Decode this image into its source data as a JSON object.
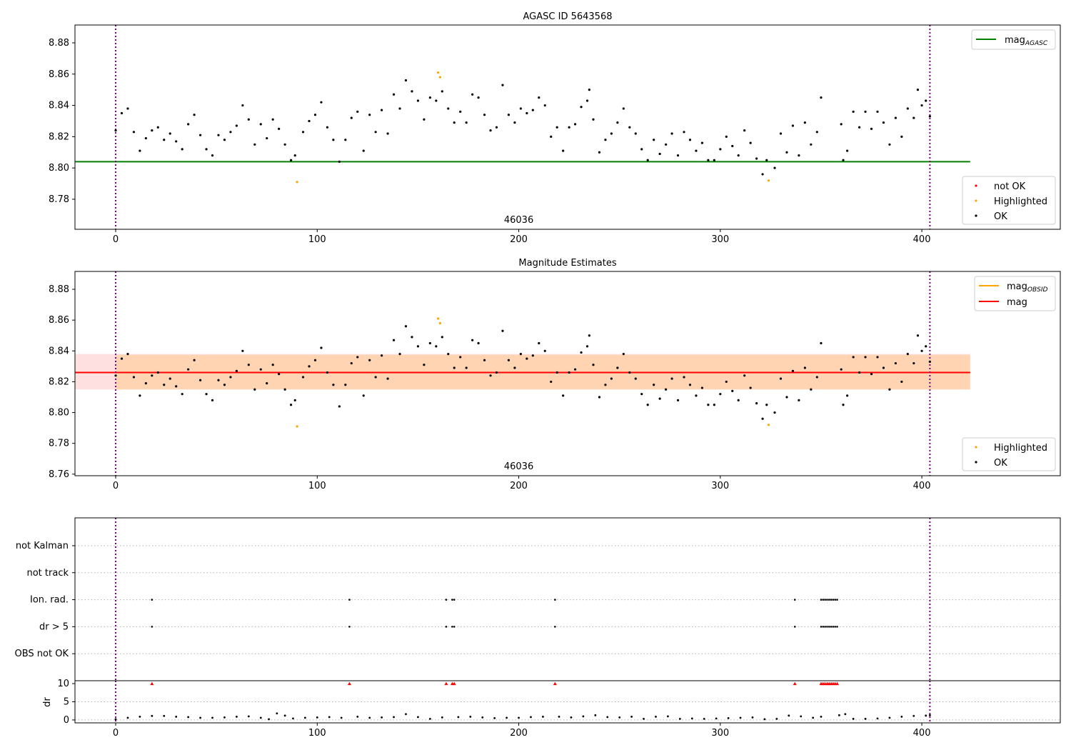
{
  "chart_data": [
    {
      "type": "scatter",
      "title": "AGASC ID 5643568",
      "xlim": [
        -20.2,
        468.7
      ],
      "ylim": [
        8.7608,
        8.8914
      ],
      "xticks": [
        0,
        100,
        200,
        300,
        400
      ],
      "yticks": [
        8.78,
        8.8,
        8.82,
        8.84,
        8.86,
        8.88
      ],
      "ytick_labels": [
        "8.78",
        "8.80",
        "8.82",
        "8.84",
        "8.86",
        "8.88"
      ],
      "xtick_labels": [
        "0",
        "100",
        "200",
        "300",
        "400"
      ],
      "annotation": {
        "text": "46036",
        "x": 200
      },
      "vlines": [
        0,
        404
      ],
      "hline": {
        "name": "mag_AGASC",
        "label": "mag",
        "sub": "AGASC",
        "value": 8.804,
        "xrange": [
          -20,
          424
        ],
        "color": "#008000"
      },
      "legend_top": "top-right",
      "legend_bottom": "bottom-right",
      "series_labels": [
        "not OK",
        "Highlighted",
        "OK"
      ],
      "series_colors": [
        "#ff0000",
        "#ffa500",
        "#000000"
      ]
    },
    {
      "type": "scatter",
      "title": "Magnitude Estimates",
      "xlim": [
        -20.2,
        468.7
      ],
      "ylim": [
        8.759,
        8.8916
      ],
      "xticks": [
        0,
        100,
        200,
        300,
        400
      ],
      "yticks": [
        8.76,
        8.78,
        8.8,
        8.82,
        8.84,
        8.86,
        8.88
      ],
      "ytick_labels": [
        "8.76",
        "8.78",
        "8.80",
        "8.82",
        "8.84",
        "8.86",
        "8.88"
      ],
      "xtick_labels": [
        "0",
        "100",
        "200",
        "300",
        "400"
      ],
      "annotation": {
        "text": "46036",
        "x": 200
      },
      "vlines": [
        0,
        404
      ],
      "mag_obsid": {
        "label": "mag",
        "sub": "OBSID",
        "value": 8.826,
        "band": [
          8.815,
          8.8375
        ],
        "color": "#ffa500"
      },
      "mag": {
        "label": "mag",
        "value": 8.826,
        "band": [
          8.815,
          8.838
        ],
        "color": "#ff0000"
      },
      "series_labels": [
        "Highlighted",
        "OK"
      ]
    },
    {
      "type": "scatter",
      "title": "",
      "xlim": [
        -20.2,
        468.7
      ],
      "ylim": [
        -1,
        5.03
      ],
      "categories": [
        "OBS not OK",
        "dr > 5",
        "Ion. rad.",
        "not track",
        "not Kalman"
      ],
      "flags": {
        "dr > 5": [
          18,
          116,
          164,
          167,
          168,
          218,
          337,
          350,
          351,
          352,
          353,
          354,
          355,
          356,
          357,
          358
        ],
        "Ion. rad.": [
          18,
          116,
          164,
          167,
          168,
          218,
          337,
          350,
          351,
          352,
          353,
          354,
          355,
          356,
          357,
          358
        ]
      }
    },
    {
      "type": "line",
      "ylabel": "dr",
      "xlim": [
        -20.2,
        468.7
      ],
      "ylim": [
        -0.8,
        10.8
      ],
      "yticks": [
        0,
        5,
        10
      ],
      "ytick_labels": [
        "0",
        "5",
        "10"
      ],
      "xticks": [
        0,
        100,
        200,
        300,
        400
      ],
      "xtick_labels": [
        "0",
        "100",
        "200",
        "300",
        "400"
      ],
      "dr_points": [
        [
          0,
          0.2
        ],
        [
          6,
          0.6
        ],
        [
          12,
          0.9
        ],
        [
          18,
          1.1
        ],
        [
          24,
          1.1
        ],
        [
          30,
          0.9
        ],
        [
          36,
          0.8
        ],
        [
          42,
          0.6
        ],
        [
          48,
          0.6
        ],
        [
          54,
          0.7
        ],
        [
          60,
          0.9
        ],
        [
          66,
          1.0
        ],
        [
          72,
          0.6
        ],
        [
          76,
          0.2
        ],
        [
          80,
          1.8
        ],
        [
          84,
          1.2
        ],
        [
          88,
          0.4
        ],
        [
          94,
          0.6
        ],
        [
          100,
          0.7
        ],
        [
          106,
          0.8
        ],
        [
          112,
          0.6
        ],
        [
          120,
          0.9
        ],
        [
          126,
          0.6
        ],
        [
          132,
          0.7
        ],
        [
          138,
          0.8
        ],
        [
          144,
          1.6
        ],
        [
          150,
          0.8
        ],
        [
          156,
          0.3
        ],
        [
          162,
          0.7
        ],
        [
          170,
          0.8
        ],
        [
          176,
          0.9
        ],
        [
          182,
          0.7
        ],
        [
          188,
          0.5
        ],
        [
          194,
          0.6
        ],
        [
          200,
          0.6
        ],
        [
          206,
          0.8
        ],
        [
          212,
          0.9
        ],
        [
          220,
          0.9
        ],
        [
          226,
          0.7
        ],
        [
          232,
          1.0
        ],
        [
          238,
          1.3
        ],
        [
          244,
          0.8
        ],
        [
          250,
          0.7
        ],
        [
          256,
          0.9
        ],
        [
          262,
          0.3
        ],
        [
          268,
          0.9
        ],
        [
          274,
          1.0
        ],
        [
          280,
          0.3
        ],
        [
          286,
          0.4
        ],
        [
          292,
          0.3
        ],
        [
          298,
          0.4
        ],
        [
          304,
          0.5
        ],
        [
          310,
          0.6
        ],
        [
          316,
          0.7
        ],
        [
          322,
          0.2
        ],
        [
          328,
          0.3
        ],
        [
          334,
          1.2
        ],
        [
          340,
          1.0
        ],
        [
          346,
          0.6
        ],
        [
          350,
          0.9
        ],
        [
          359,
          1.3
        ],
        [
          362,
          1.6
        ],
        [
          366,
          0.3
        ],
        [
          372,
          0.3
        ],
        [
          378,
          0.4
        ],
        [
          384,
          0.6
        ],
        [
          390,
          0.9
        ],
        [
          396,
          1.1
        ],
        [
          402,
          1.2
        ],
        [
          404,
          1.3
        ]
      ],
      "clipped_red_x": [
        18,
        116,
        164,
        167,
        168,
        218,
        337,
        350,
        351,
        352,
        353,
        354,
        355,
        356,
        357,
        358
      ]
    }
  ],
  "mag_ok": [
    [
      0,
      8.824
    ],
    [
      3,
      8.835
    ],
    [
      6,
      8.838
    ],
    [
      9,
      8.823
    ],
    [
      12,
      8.811
    ],
    [
      15,
      8.819
    ],
    [
      18,
      8.824
    ],
    [
      21,
      8.826
    ],
    [
      24,
      8.818
    ],
    [
      27,
      8.822
    ],
    [
      30,
      8.817
    ],
    [
      33,
      8.812
    ],
    [
      36,
      8.828
    ],
    [
      39,
      8.834
    ],
    [
      42,
      8.821
    ],
    [
      45,
      8.812
    ],
    [
      48,
      8.808
    ],
    [
      51,
      8.821
    ],
    [
      54,
      8.818
    ],
    [
      57,
      8.823
    ],
    [
      60,
      8.827
    ],
    [
      63,
      8.84
    ],
    [
      66,
      8.831
    ],
    [
      69,
      8.815
    ],
    [
      72,
      8.828
    ],
    [
      75,
      8.819
    ],
    [
      78,
      8.831
    ],
    [
      81,
      8.825
    ],
    [
      84,
      8.815
    ],
    [
      87,
      8.805
    ],
    [
      89,
      8.808
    ],
    [
      93,
      8.823
    ],
    [
      96,
      8.83
    ],
    [
      99,
      8.834
    ],
    [
      102,
      8.842
    ],
    [
      105,
      8.826
    ],
    [
      108,
      8.818
    ],
    [
      111,
      8.804
    ],
    [
      114,
      8.818
    ],
    [
      117,
      8.832
    ],
    [
      120,
      8.836
    ],
    [
      123,
      8.811
    ],
    [
      126,
      8.834
    ],
    [
      129,
      8.823
    ],
    [
      132,
      8.837
    ],
    [
      135,
      8.822
    ],
    [
      138,
      8.847
    ],
    [
      141,
      8.838
    ],
    [
      144,
      8.856
    ],
    [
      147,
      8.849
    ],
    [
      150,
      8.843
    ],
    [
      153,
      8.831
    ],
    [
      156,
      8.845
    ],
    [
      159,
      8.843
    ],
    [
      162,
      8.849
    ],
    [
      165,
      8.838
    ],
    [
      168,
      8.829
    ],
    [
      171,
      8.836
    ],
    [
      174,
      8.829
    ],
    [
      177,
      8.847
    ],
    [
      180,
      8.845
    ],
    [
      183,
      8.834
    ],
    [
      186,
      8.824
    ],
    [
      189,
      8.826
    ],
    [
      192,
      8.853
    ],
    [
      195,
      8.834
    ],
    [
      198,
      8.829
    ],
    [
      201,
      8.838
    ],
    [
      204,
      8.835
    ],
    [
      207,
      8.837
    ],
    [
      210,
      8.845
    ],
    [
      213,
      8.84
    ],
    [
      216,
      8.82
    ],
    [
      219,
      8.826
    ],
    [
      222,
      8.811
    ],
    [
      225,
      8.826
    ],
    [
      228,
      8.828
    ],
    [
      231,
      8.839
    ],
    [
      234,
      8.843
    ],
    [
      235,
      8.85
    ],
    [
      237,
      8.831
    ],
    [
      240,
      8.81
    ],
    [
      243,
      8.818
    ],
    [
      246,
      8.822
    ],
    [
      249,
      8.829
    ],
    [
      252,
      8.838
    ],
    [
      255,
      8.826
    ],
    [
      258,
      8.822
    ],
    [
      261,
      8.812
    ],
    [
      264,
      8.805
    ],
    [
      267,
      8.818
    ],
    [
      270,
      8.809
    ],
    [
      273,
      8.815
    ],
    [
      276,
      8.822
    ],
    [
      279,
      8.808
    ],
    [
      282,
      8.823
    ],
    [
      285,
      8.818
    ],
    [
      288,
      8.811
    ],
    [
      291,
      8.816
    ],
    [
      294,
      8.805
    ],
    [
      297,
      8.805
    ],
    [
      300,
      8.812
    ],
    [
      303,
      8.82
    ],
    [
      306,
      8.814
    ],
    [
      309,
      8.808
    ],
    [
      312,
      8.824
    ],
    [
      315,
      8.816
    ],
    [
      318,
      8.806
    ],
    [
      321,
      8.796
    ],
    [
      323,
      8.805
    ],
    [
      327,
      8.8
    ],
    [
      330,
      8.822
    ],
    [
      333,
      8.81
    ],
    [
      336,
      8.827
    ],
    [
      339,
      8.808
    ],
    [
      342,
      8.829
    ],
    [
      345,
      8.815
    ],
    [
      348,
      8.823
    ],
    [
      350,
      8.845
    ],
    [
      360,
      8.828
    ],
    [
      361,
      8.805
    ],
    [
      363,
      8.811
    ],
    [
      366,
      8.836
    ],
    [
      369,
      8.826
    ],
    [
      372,
      8.836
    ],
    [
      375,
      8.825
    ],
    [
      378,
      8.836
    ],
    [
      381,
      8.829
    ],
    [
      384,
      8.815
    ],
    [
      387,
      8.832
    ],
    [
      390,
      8.82
    ],
    [
      393,
      8.838
    ],
    [
      396,
      8.832
    ],
    [
      398,
      8.85
    ],
    [
      400,
      8.84
    ],
    [
      402,
      8.843
    ],
    [
      404,
      8.833
    ]
  ],
  "mag_highlighted": [
    [
      90,
      8.791
    ],
    [
      160,
      8.861
    ],
    [
      161,
      8.858
    ],
    [
      324,
      8.792
    ]
  ]
}
